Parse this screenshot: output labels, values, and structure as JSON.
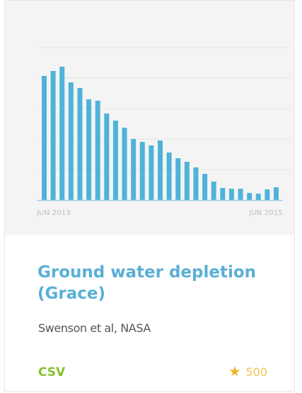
{
  "card": {
    "title": "Ground water depletion (Grace)",
    "subtitle": "Swenson et al, NASA",
    "format": "CSV",
    "stars": "500",
    "star_icon": "star-icon"
  },
  "chart_data": {
    "type": "bar",
    "title": "",
    "xlabel": "",
    "ylabel": "",
    "x_tick_labels": [
      "JUN 2013",
      "JUN 2015"
    ],
    "values": [
      175,
      182,
      188,
      166,
      158,
      142,
      140,
      122,
      112,
      102,
      86,
      82,
      77,
      84,
      67,
      59,
      54,
      46,
      37,
      26,
      17,
      16,
      16,
      10,
      9,
      15,
      18
    ],
    "ylim": [
      0,
      215
    ],
    "grid": true,
    "colors": {
      "bar": "#4fb3d9",
      "grid": "#e3e3e3",
      "axis": "#9fd0e6",
      "background": "#f4f4f4"
    }
  },
  "colors": {
    "title": "#5aafd6",
    "format": "#86bf2d",
    "star": "#f3b51c"
  }
}
